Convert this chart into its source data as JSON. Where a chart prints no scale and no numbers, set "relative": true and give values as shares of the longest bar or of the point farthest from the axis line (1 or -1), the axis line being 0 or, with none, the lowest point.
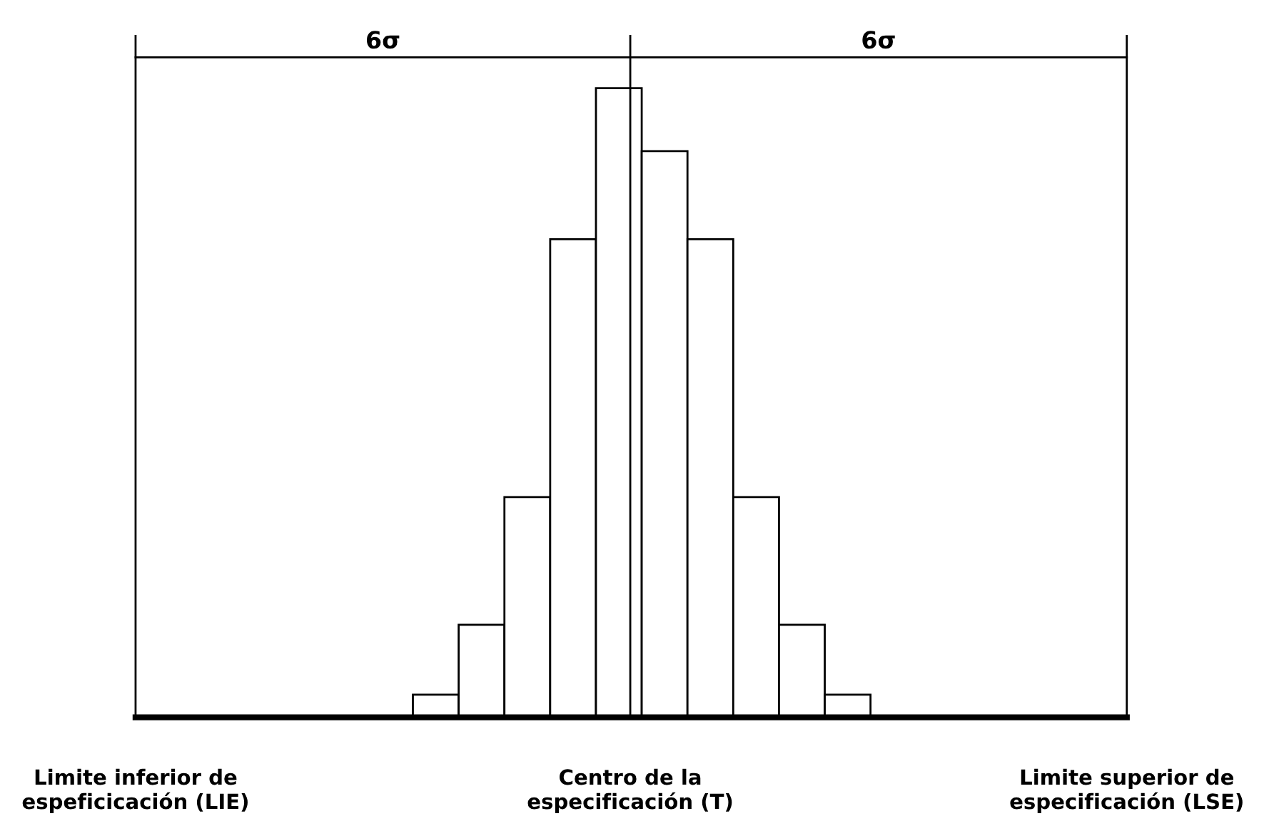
{
  "chart_data": {
    "type": "bar",
    "relative": true,
    "categories": [
      null,
      null,
      null,
      null,
      null,
      null,
      null,
      null,
      null,
      null
    ],
    "values": [
      0.036,
      0.147,
      0.35,
      0.76,
      1,
      0.9,
      0.76,
      0.35,
      0.147,
      0.036
    ],
    "color": "#ffffff",
    "annotations": [
      "6σ",
      "6σ",
      "Limite inferior de\nespeficicación (LIE)",
      "Centro de la\nespecificación (T)",
      "Limite superior de\nespecificación (LSE)"
    ]
  }
}
